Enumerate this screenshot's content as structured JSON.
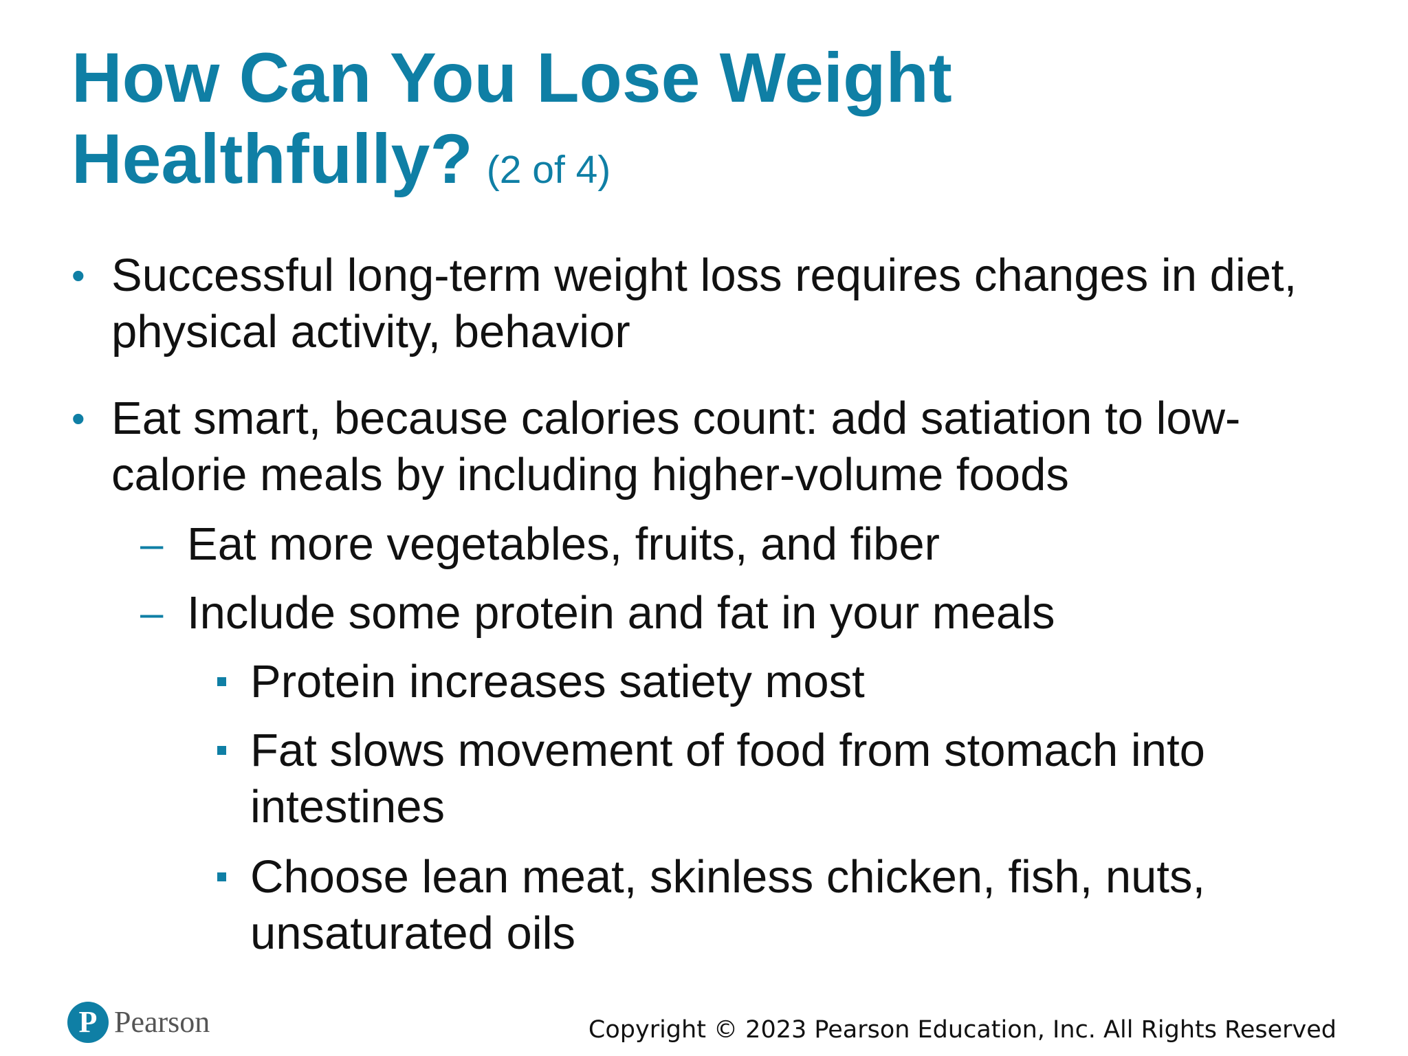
{
  "slide": {
    "title": {
      "main": "How Can You Lose Weight Healthfully?",
      "subtitle": "(2 of 4)"
    },
    "bullets": [
      {
        "level": 1,
        "text": "Successful long-term weight loss requires changes in diet, physical activity, behavior"
      },
      {
        "level": 1,
        "text": "Eat smart, because calories count: add satiation to low-calorie meals by including higher-volume foods"
      },
      {
        "level": 2,
        "text": "Eat more vegetables, fruits, and fiber"
      },
      {
        "level": 2,
        "text": "Include some protein and fat in your meals"
      },
      {
        "level": 3,
        "text": "Protein increases satiety most"
      },
      {
        "level": 3,
        "text": "Fat slows movement of food from stomach into intestines"
      },
      {
        "level": 3,
        "text": "Choose lean meat, skinless chicken, fish, nuts, unsaturated oils"
      }
    ],
    "markers": {
      "level1": "•",
      "level2": "–"
    },
    "footer": {
      "logo_letter": "P",
      "logo_text": "Pearson",
      "copyright": "Copyright © 2023 Pearson Education, Inc. All Rights Reserved"
    },
    "colors": {
      "accent": "#0f7fa5",
      "text": "#111111"
    }
  }
}
